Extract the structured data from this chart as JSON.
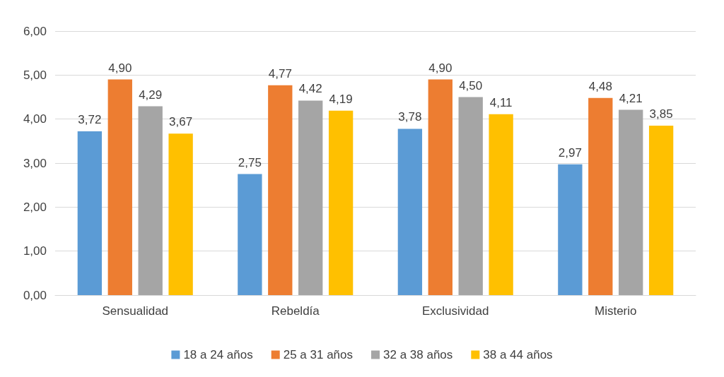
{
  "chart_data": {
    "type": "bar",
    "categories": [
      "Sensualidad",
      "Rebeldía",
      "Exclusividad",
      "Misterio"
    ],
    "series": [
      {
        "name": "18 a 24 años",
        "color": "#5b9bd5",
        "values": [
          3.72,
          2.75,
          3.78,
          2.97
        ],
        "value_labels": [
          "3,72",
          "2,75",
          "3,78",
          "2,97"
        ]
      },
      {
        "name": "25 a 31 años",
        "color": "#ed7d31",
        "values": [
          4.9,
          4.77,
          4.9,
          4.48
        ],
        "value_labels": [
          "4,90",
          "4,77",
          "4,90",
          "4,48"
        ]
      },
      {
        "name": "32 a 38 años",
        "color": "#a5a5a5",
        "values": [
          4.29,
          4.42,
          4.5,
          4.21
        ],
        "value_labels": [
          "4,29",
          "4,42",
          "4,50",
          "4,21"
        ]
      },
      {
        "name": "38 a 44 años",
        "color": "#ffc000",
        "values": [
          3.67,
          4.19,
          4.11,
          3.85
        ],
        "value_labels": [
          "3,67",
          "4,19",
          "4,11",
          "3,85"
        ]
      }
    ],
    "ylim": [
      0,
      6
    ],
    "yticks": [
      {
        "value": 0,
        "label": "0,00"
      },
      {
        "value": 1,
        "label": "1,00"
      },
      {
        "value": 2,
        "label": "2,00"
      },
      {
        "value": 3,
        "label": "3,00"
      },
      {
        "value": 4,
        "label": "4,00"
      },
      {
        "value": 5,
        "label": "5,00"
      },
      {
        "value": 6,
        "label": "6,00"
      }
    ],
    "grid": "y",
    "legend": "bottom"
  }
}
